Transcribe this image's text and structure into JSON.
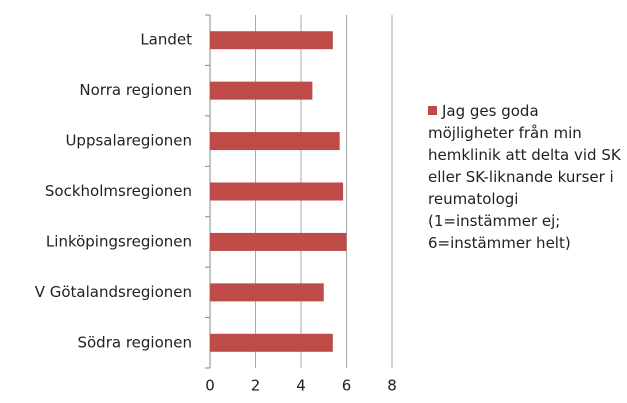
{
  "chart_data": {
    "type": "barh",
    "categories": [
      "Landet",
      "Norra regionen",
      "Uppsalaregionen",
      "Sockholmsregionen",
      "Linköpingsregionen",
      "V Götalandsregionen",
      "Södra regionen"
    ],
    "series": [
      {
        "name": "Jag ges goda möjligheter från min hemklinik att delta vid SK eller SK-liknande kurser i reumatologi (1=instämmer ej; 6=instämmer helt)",
        "color": "#be4b48",
        "values": [
          5.4,
          4.5,
          5.7,
          5.85,
          6.0,
          5.0,
          5.4
        ]
      }
    ],
    "xlim": [
      0,
      8
    ],
    "xticks": [
      0,
      2,
      4,
      6,
      8
    ],
    "grid": true,
    "legend": "right"
  }
}
